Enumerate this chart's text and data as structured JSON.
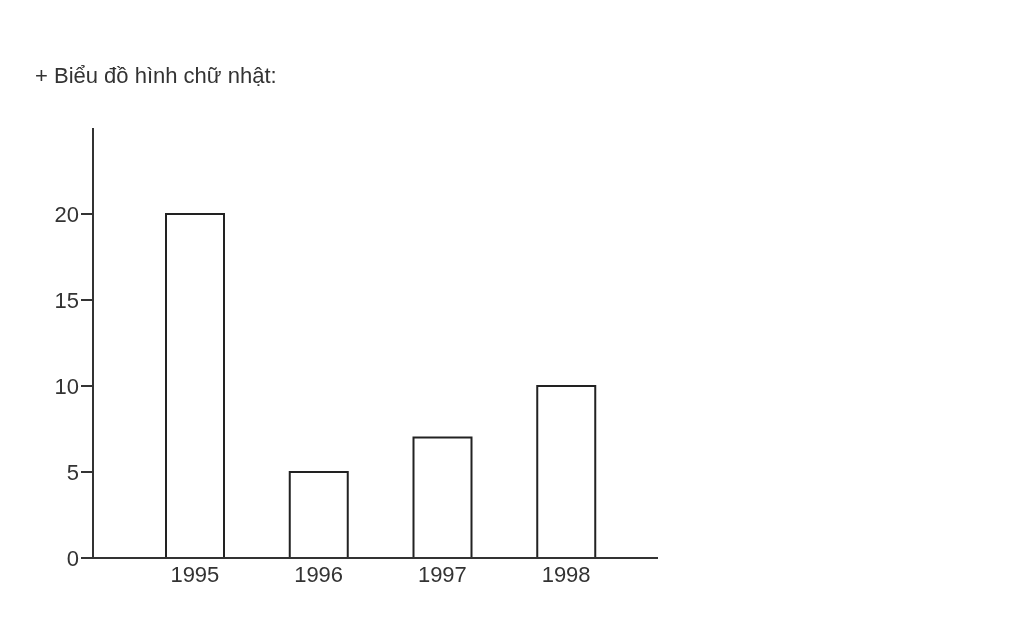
{
  "chart_data": {
    "type": "bar",
    "title": "+ Biểu đồ hình chữ nhật:",
    "categories": [
      "1995",
      "1996",
      "1997",
      "1998"
    ],
    "values": [
      20,
      5,
      7,
      10
    ],
    "color": "#ffffff",
    "ylim": [
      0,
      25
    ],
    "yticks": [
      0,
      5,
      10,
      15,
      20
    ],
    "grid": false
  }
}
